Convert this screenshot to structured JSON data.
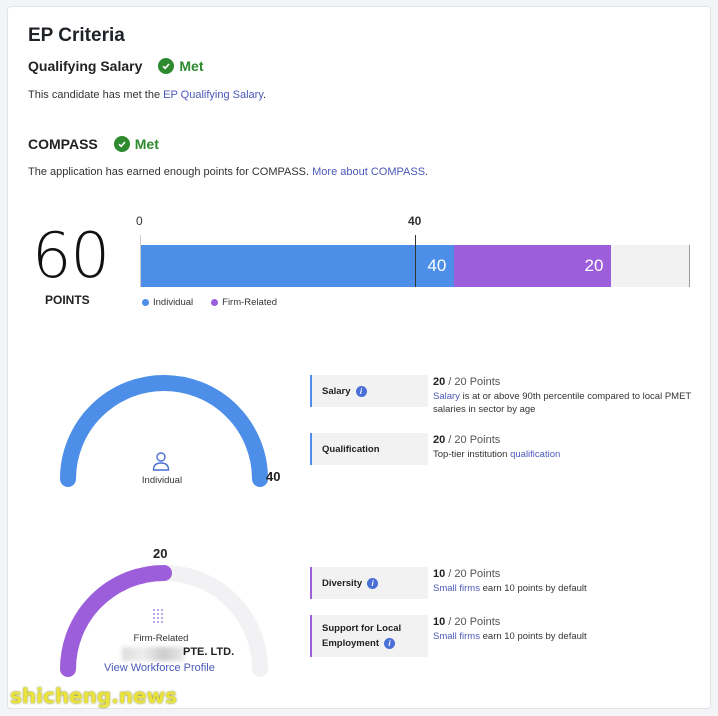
{
  "title": "EP Criteria",
  "qualifying_salary": {
    "label": "Qualifying Salary",
    "status": "Met",
    "desc_prefix": "This candidate has met the ",
    "desc_link": "EP Qualifying Salary",
    "desc_suffix": "."
  },
  "compass": {
    "label": "COMPASS",
    "status": "Met",
    "desc_prefix": "The application has earned enough points for COMPASS. ",
    "desc_link": "More about COMPASS",
    "desc_suffix": "."
  },
  "points": {
    "total": "60",
    "label": "POINTS",
    "tick_zero": "0",
    "tick_threshold": "40",
    "individual_value": 40,
    "firm_value": 20,
    "bar_max": 70,
    "individual_text": "40",
    "firm_text": "20",
    "legend": [
      "Individual",
      "Firm-Related"
    ],
    "colors": {
      "individual": "#4d8ee8",
      "firm": "#9d5edb"
    }
  },
  "individual_gauge": {
    "label": "Individual",
    "value": "40",
    "fraction": 1.0,
    "icon": "person-icon"
  },
  "firm_gauge": {
    "label": "Firm-Related",
    "value": "20",
    "fraction": 0.5,
    "icon": "building-icon",
    "company_suffix": "PTE. LTD.",
    "link": "View Workforce Profile"
  },
  "criteria": [
    {
      "name": "Salary",
      "score": "20",
      "max": " / 20 Points",
      "link": "Salary",
      "text": " is at or above 90th percentile compared to local PMET salaries in sector by age"
    },
    {
      "name": "Qualification",
      "score": "20",
      "max": " / 20 Points",
      "prefix": "Top-tier institution ",
      "link": "qualification"
    },
    {
      "name": "Diversity",
      "score": "10",
      "max": " / 20 Points",
      "link": "Small firms",
      "text": " earn 10 points by default"
    },
    {
      "name_line1": "Support for Local",
      "name_line2": "Employment",
      "score": "10",
      "max": " / 20 Points",
      "link": "Small firms",
      "text": " earn 10 points by default"
    }
  ],
  "watermark": "shicheng.news"
}
